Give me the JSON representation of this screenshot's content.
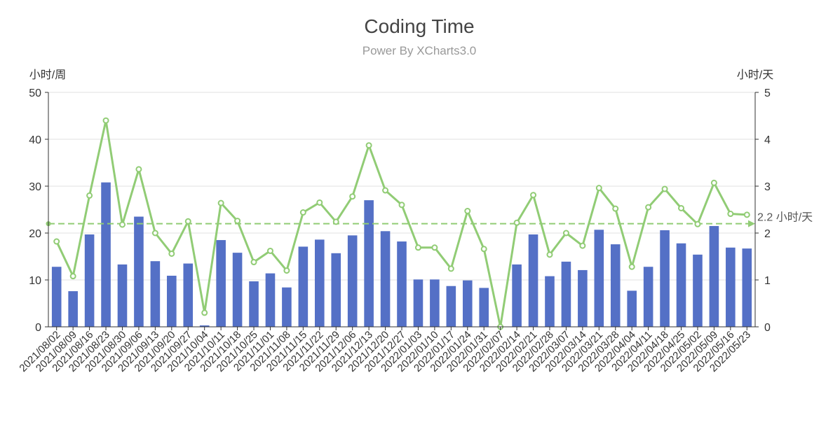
{
  "colors": {
    "bar": "#5470c6",
    "line": "#91cc75",
    "axis": "#333333",
    "grid": "#e0e0e0",
    "text": "#444444",
    "subtext": "#999999"
  },
  "chart_data": {
    "type": "bar",
    "title": "Coding Time",
    "subtitle": "Power By XCharts3.0",
    "y_left_label": "小时/周",
    "y_right_label": "小时/天",
    "ylim_left": [
      0,
      50
    ],
    "ylim_right": [
      0,
      5
    ],
    "left_ticks": [
      "0",
      "10",
      "20",
      "30",
      "40",
      "50"
    ],
    "right_ticks": [
      "0",
      "1",
      "2",
      "3",
      "4",
      "5"
    ],
    "grid": true,
    "categories": [
      "2021/08/02",
      "2021/08/09",
      "2021/08/16",
      "2021/08/23",
      "2021/08/30",
      "2021/09/06",
      "2021/09/13",
      "2021/09/20",
      "2021/09/27",
      "2021/10/04",
      "2021/10/11",
      "2021/10/18",
      "2021/10/25",
      "2021/11/01",
      "2021/11/08",
      "2021/11/15",
      "2021/11/22",
      "2021/11/29",
      "2021/12/06",
      "2021/12/13",
      "2021/12/20",
      "2021/12/27",
      "2022/01/03",
      "2022/01/10",
      "2022/01/17",
      "2022/01/24",
      "2022/01/31",
      "2022/02/07",
      "2022/02/14",
      "2022/02/21",
      "2022/02/28",
      "2022/03/07",
      "2022/03/14",
      "2022/03/21",
      "2022/03/28",
      "2022/04/04",
      "2022/04/11",
      "2022/04/18",
      "2022/04/25",
      "2022/05/02",
      "2022/05/09",
      "2022/05/16",
      "2022/05/23"
    ],
    "series": [
      {
        "type": "bar",
        "axis": "left",
        "values": [
          12.8,
          7.6,
          19.7,
          30.8,
          13.3,
          23.5,
          14.0,
          10.9,
          13.5,
          0.3,
          18.5,
          15.8,
          9.7,
          11.4,
          8.4,
          17.1,
          18.6,
          15.7,
          19.5,
          27.0,
          20.4,
          18.2,
          10.1,
          10.1,
          8.7,
          9.9,
          8.3,
          0.0,
          13.3,
          19.7,
          10.8,
          13.9,
          12.1,
          20.7,
          17.6,
          7.7,
          12.8,
          20.6,
          17.8,
          15.4,
          21.5,
          16.9,
          16.7
        ]
      },
      {
        "type": "line",
        "axis": "right",
        "values": [
          1.82,
          1.08,
          2.8,
          4.4,
          2.18,
          3.36,
          2.0,
          1.56,
          2.25,
          0.3,
          2.64,
          2.26,
          1.38,
          1.62,
          1.2,
          2.44,
          2.65,
          2.24,
          2.78,
          3.87,
          2.91,
          2.6,
          1.69,
          1.69,
          1.24,
          2.47,
          1.66,
          0.0,
          2.22,
          2.81,
          1.54,
          2.0,
          1.73,
          2.96,
          2.52,
          1.28,
          2.55,
          2.94,
          2.53,
          2.19,
          3.07,
          2.41,
          2.39
        ]
      }
    ],
    "markline": {
      "value": 2.2,
      "label": "2.2 小时/天",
      "axis": "right"
    }
  }
}
